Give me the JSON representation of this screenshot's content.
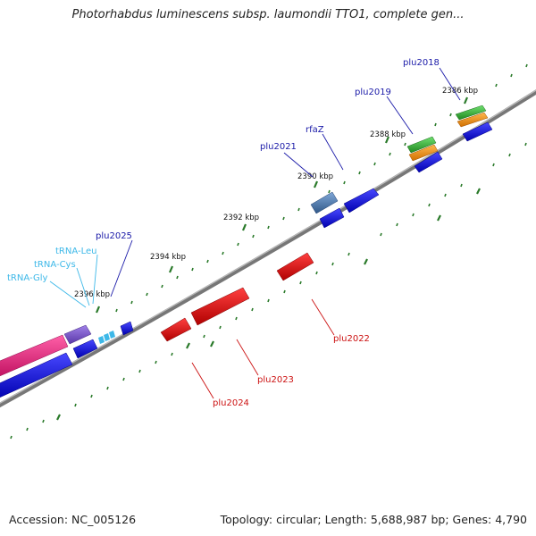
{
  "title": "Photorhabdus luminescens subsp. laumondii TTO1, complete gen...",
  "footer": {
    "accession": "Accession: NC_005126",
    "topology": "Topology: circular; Length: 5,688,987 bp; Genes: 4,790"
  },
  "kbp_ticks": [
    "2386 kbp",
    "2388 kbp",
    "2390 kbp",
    "2392 kbp",
    "2394 kbp",
    "2396 kbp"
  ],
  "gene_labels": {
    "plu2018": "plu2018",
    "plu2019": "plu2019",
    "rfaZ": "rfaZ",
    "plu2021": "plu2021",
    "plu2025": "plu2025",
    "trna_leu": "tRNA-Leu",
    "trna_cys": "tRNA-Cys",
    "trna_gly": "tRNA-Gly",
    "plu2022": "plu2022",
    "plu2023": "plu2023",
    "plu2024": "plu2024"
  },
  "colors": {
    "forward_gene": "#0a0ae0",
    "reverse_gene": "#e01010",
    "trna": "#3db8e8",
    "rrna_pink": "#e8207a",
    "purple": "#7a55c8",
    "steel": "#4a7ab0",
    "green": "#38b838",
    "orange": "#f09020",
    "backbone": "#777777",
    "tick_green": "#2a7a2a"
  }
}
